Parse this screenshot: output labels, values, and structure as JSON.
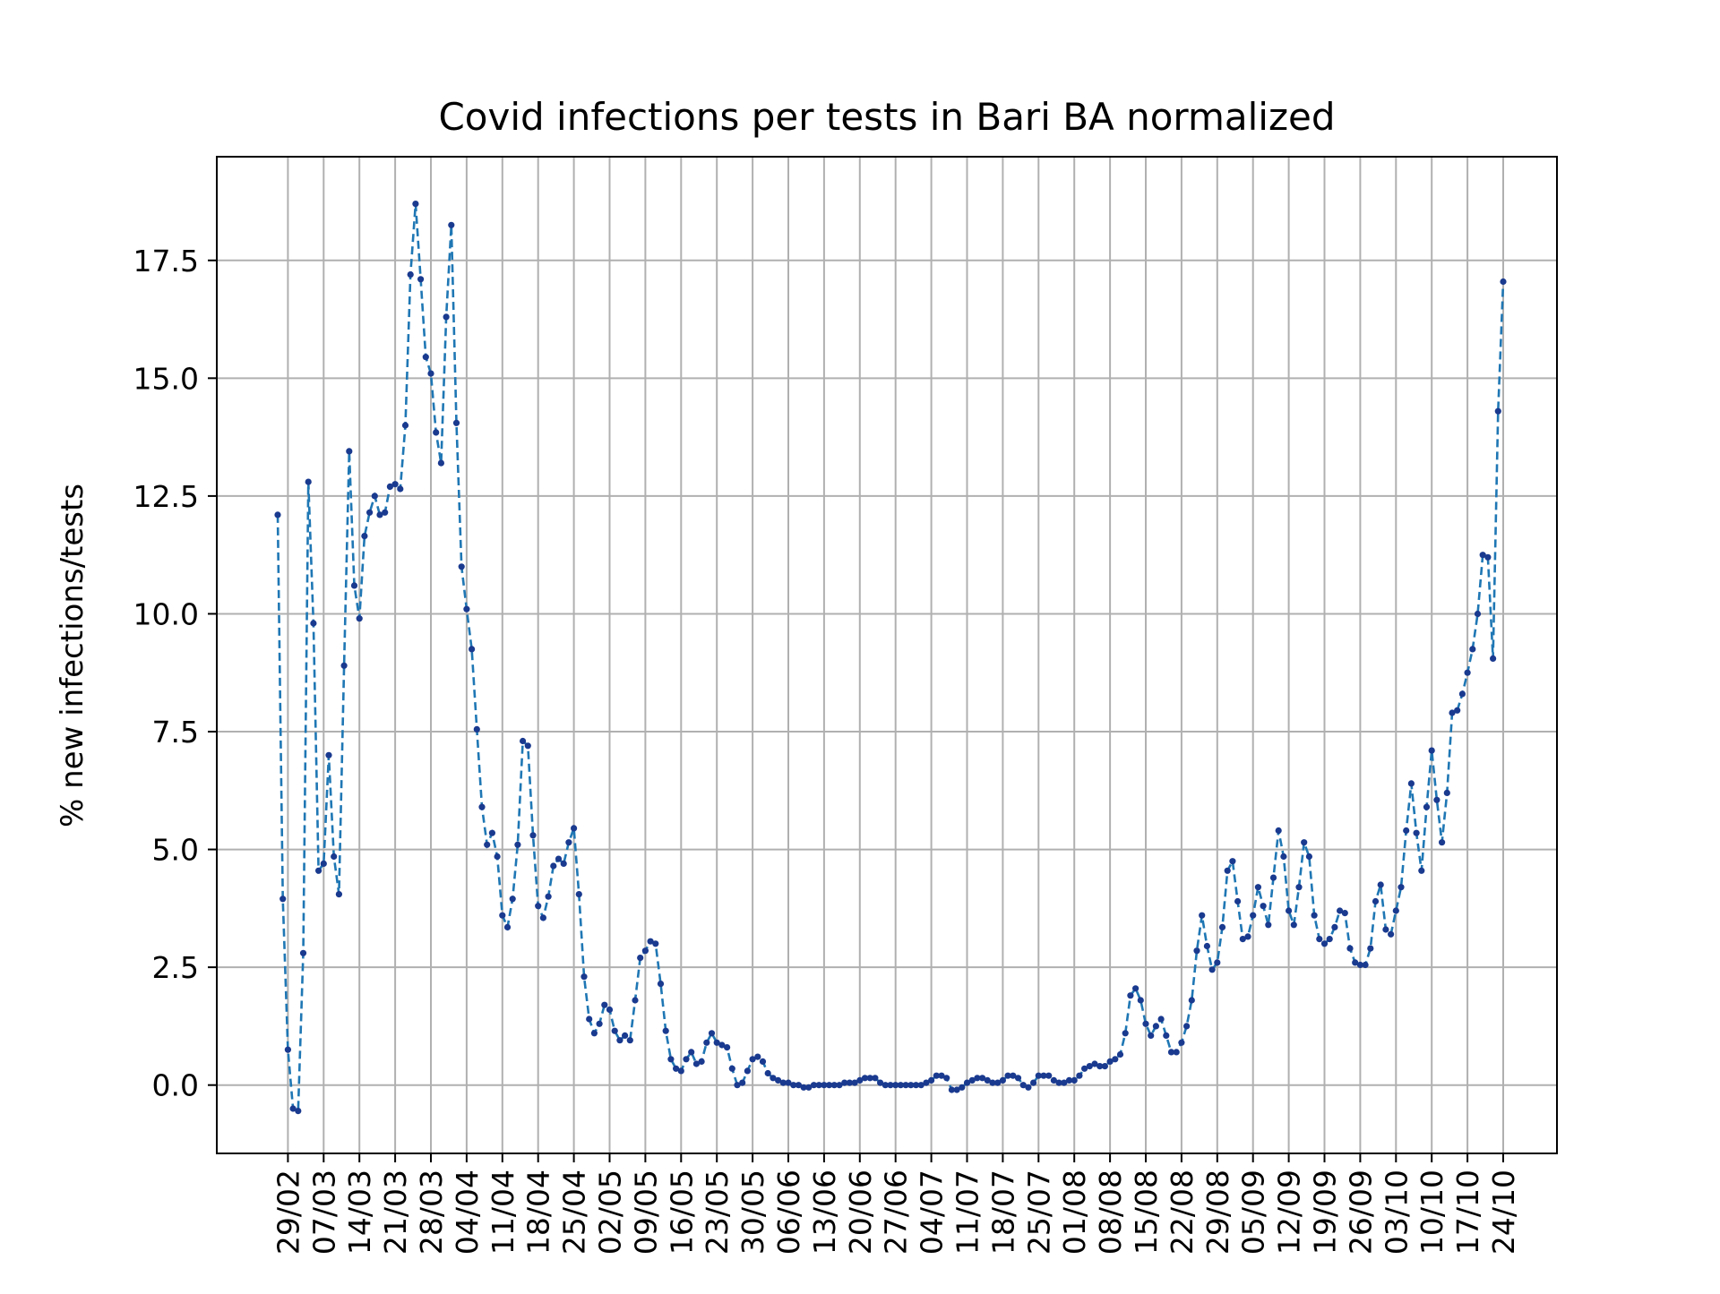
{
  "chart_data": {
    "type": "line",
    "title": "Covid infections per tests in Bari BA normalized",
    "xlabel": "",
    "ylabel": "% new infections/tests",
    "ylim": [
      -1.45,
      19.7
    ],
    "yticks": [
      0.0,
      2.5,
      5.0,
      7.5,
      10.0,
      12.5,
      15.0,
      17.5
    ],
    "ytick_labels": [
      "0.0",
      "2.5",
      "5.0",
      "7.5",
      "10.0",
      "12.5",
      "15.0",
      "17.5"
    ],
    "xtick_labels": [
      "29/02",
      "07/03",
      "14/03",
      "21/03",
      "28/03",
      "04/04",
      "11/04",
      "18/04",
      "25/04",
      "02/05",
      "09/05",
      "16/05",
      "23/05",
      "30/05",
      "06/06",
      "13/06",
      "20/06",
      "27/06",
      "04/07",
      "11/07",
      "18/07",
      "25/07",
      "01/08",
      "08/08",
      "15/08",
      "22/08",
      "29/08",
      "05/09",
      "12/09",
      "19/09",
      "26/09",
      "03/10",
      "10/10",
      "17/10",
      "24/10"
    ],
    "grid": true,
    "series": [
      {
        "color": "#1f77b4",
        "marker_color": "#1a3a8f",
        "linestyle": "dashed",
        "start_date": "2020-02-27",
        "step_days": 1,
        "values": [
          12.1,
          3.95,
          0.75,
          -0.5,
          -0.55,
          2.8,
          12.8,
          9.8,
          4.55,
          4.7,
          7.0,
          4.85,
          4.05,
          8.9,
          13.45,
          10.6,
          9.9,
          11.65,
          12.15,
          12.5,
          12.1,
          12.15,
          12.7,
          12.75,
          12.65,
          14.0,
          17.2,
          18.7,
          17.1,
          15.45,
          15.1,
          13.85,
          13.2,
          16.3,
          18.25,
          14.05,
          11.0,
          10.1,
          9.25,
          7.55,
          5.9,
          5.1,
          5.35,
          4.85,
          3.6,
          3.35,
          3.95,
          5.1,
          7.3,
          7.2,
          5.3,
          3.8,
          3.55,
          4.0,
          4.65,
          4.8,
          4.7,
          5.15,
          5.45,
          4.05,
          2.3,
          1.4,
          1.1,
          1.3,
          1.7,
          1.6,
          1.15,
          0.95,
          1.05,
          0.95,
          1.8,
          2.7,
          2.85,
          3.05,
          3.0,
          2.15,
          1.15,
          0.55,
          0.35,
          0.3,
          0.55,
          0.7,
          0.45,
          0.5,
          0.9,
          1.1,
          0.9,
          0.85,
          0.8,
          0.35,
          0.0,
          0.05,
          0.3,
          0.55,
          0.6,
          0.5,
          0.25,
          0.15,
          0.1,
          0.05,
          0.05,
          0.0,
          0.0,
          -0.05,
          -0.05,
          0.0,
          0.0,
          0.0,
          0.0,
          0.0,
          0.0,
          0.05,
          0.05,
          0.05,
          0.1,
          0.15,
          0.15,
          0.15,
          0.05,
          0.0,
          0.0,
          0.0,
          0.0,
          0.0,
          0.0,
          0.0,
          0.0,
          0.05,
          0.1,
          0.2,
          0.2,
          0.15,
          -0.1,
          -0.1,
          -0.05,
          0.05,
          0.1,
          0.15,
          0.15,
          0.1,
          0.05,
          0.05,
          0.1,
          0.2,
          0.2,
          0.15,
          0.0,
          -0.05,
          0.05,
          0.2,
          0.2,
          0.2,
          0.1,
          0.05,
          0.05,
          0.1,
          0.1,
          0.2,
          0.35,
          0.4,
          0.45,
          0.4,
          0.4,
          0.5,
          0.55,
          0.65,
          1.1,
          1.9,
          2.05,
          1.8,
          1.3,
          1.05,
          1.25,
          1.4,
          1.05,
          0.7,
          0.7,
          0.9,
          1.25,
          1.8,
          2.85,
          3.6,
          2.95,
          2.45,
          2.6,
          3.35,
          4.55,
          4.75,
          3.9,
          3.1,
          3.15,
          3.6,
          4.2,
          3.8,
          3.4,
          4.4,
          5.4,
          4.85,
          3.7,
          3.4,
          4.2,
          5.15,
          4.85,
          3.6,
          3.1,
          3.0,
          3.1,
          3.35,
          3.7,
          3.65,
          2.9,
          2.6,
          2.55,
          2.55,
          2.9,
          3.9,
          4.25,
          3.3,
          3.2,
          3.7,
          4.2,
          5.4,
          6.4,
          5.35,
          4.55,
          5.9,
          7.1,
          6.05,
          5.15,
          6.2,
          7.9,
          7.95,
          8.3,
          8.75,
          9.25,
          10.0,
          11.25,
          11.2,
          9.05,
          14.3,
          17.05
        ]
      }
    ]
  }
}
